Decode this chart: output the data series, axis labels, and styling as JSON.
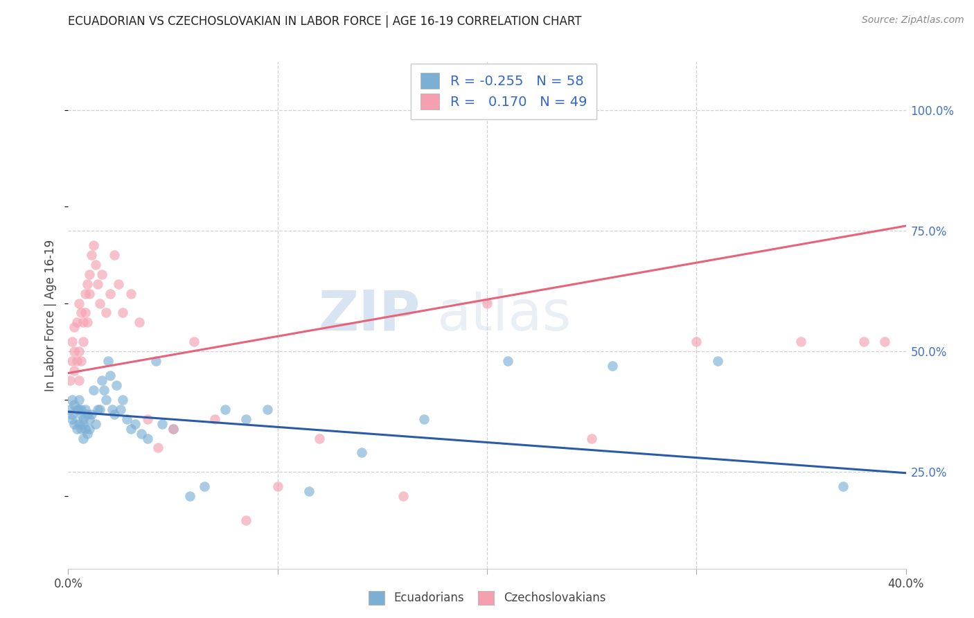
{
  "title": "ECUADORIAN VS CZECHOSLOVAKIAN IN LABOR FORCE | AGE 16-19 CORRELATION CHART",
  "source": "Source: ZipAtlas.com",
  "ylabel": "In Labor Force | Age 16-19",
  "ytick_labels": [
    "25.0%",
    "50.0%",
    "75.0%",
    "100.0%"
  ],
  "ytick_positions": [
    0.25,
    0.5,
    0.75,
    1.0
  ],
  "xlim": [
    0.0,
    0.4
  ],
  "ylim": [
    0.05,
    1.1
  ],
  "legend_r_blue": "-0.255",
  "legend_n_blue": "58",
  "legend_r_pink": "0.170",
  "legend_n_pink": "49",
  "blue_color": "#7BAFD4",
  "pink_color": "#F4A0B0",
  "blue_line_color": "#2B5BA8",
  "pink_line_color": "#E8637A",
  "watermark_zip": "ZIP",
  "watermark_atlas": "atlas",
  "blue_scatter_x": [
    0.001,
    0.002,
    0.002,
    0.002,
    0.003,
    0.003,
    0.004,
    0.004,
    0.005,
    0.005,
    0.005,
    0.006,
    0.006,
    0.006,
    0.007,
    0.007,
    0.007,
    0.008,
    0.008,
    0.009,
    0.009,
    0.01,
    0.01,
    0.011,
    0.012,
    0.013,
    0.014,
    0.015,
    0.016,
    0.017,
    0.018,
    0.019,
    0.02,
    0.021,
    0.022,
    0.023,
    0.025,
    0.026,
    0.028,
    0.03,
    0.032,
    0.035,
    0.038,
    0.042,
    0.045,
    0.05,
    0.058,
    0.065,
    0.075,
    0.085,
    0.095,
    0.115,
    0.14,
    0.17,
    0.21,
    0.26,
    0.31,
    0.37
  ],
  "blue_scatter_y": [
    0.38,
    0.4,
    0.37,
    0.36,
    0.39,
    0.35,
    0.38,
    0.34,
    0.38,
    0.35,
    0.4,
    0.37,
    0.34,
    0.38,
    0.36,
    0.32,
    0.35,
    0.34,
    0.38,
    0.33,
    0.37,
    0.36,
    0.34,
    0.37,
    0.42,
    0.35,
    0.38,
    0.38,
    0.44,
    0.42,
    0.4,
    0.48,
    0.45,
    0.38,
    0.37,
    0.43,
    0.38,
    0.4,
    0.36,
    0.34,
    0.35,
    0.33,
    0.32,
    0.48,
    0.35,
    0.34,
    0.2,
    0.22,
    0.38,
    0.36,
    0.38,
    0.21,
    0.29,
    0.36,
    0.48,
    0.47,
    0.48,
    0.22
  ],
  "pink_scatter_x": [
    0.001,
    0.002,
    0.002,
    0.003,
    0.003,
    0.003,
    0.004,
    0.004,
    0.005,
    0.005,
    0.005,
    0.006,
    0.006,
    0.007,
    0.007,
    0.008,
    0.008,
    0.009,
    0.009,
    0.01,
    0.01,
    0.011,
    0.012,
    0.013,
    0.014,
    0.015,
    0.016,
    0.018,
    0.02,
    0.022,
    0.024,
    0.026,
    0.03,
    0.034,
    0.038,
    0.043,
    0.05,
    0.06,
    0.07,
    0.085,
    0.1,
    0.12,
    0.16,
    0.2,
    0.25,
    0.3,
    0.35,
    0.38,
    0.39
  ],
  "pink_scatter_y": [
    0.44,
    0.48,
    0.52,
    0.5,
    0.46,
    0.55,
    0.48,
    0.56,
    0.5,
    0.44,
    0.6,
    0.48,
    0.58,
    0.56,
    0.52,
    0.62,
    0.58,
    0.64,
    0.56,
    0.62,
    0.66,
    0.7,
    0.72,
    0.68,
    0.64,
    0.6,
    0.66,
    0.58,
    0.62,
    0.7,
    0.64,
    0.58,
    0.62,
    0.56,
    0.36,
    0.3,
    0.34,
    0.52,
    0.36,
    0.15,
    0.22,
    0.32,
    0.2,
    0.6,
    0.32,
    0.52,
    0.52,
    0.52,
    0.52
  ],
  "blue_trendline_x": [
    0.0,
    0.4
  ],
  "blue_trendline_y": [
    0.375,
    0.248
  ],
  "pink_trendline_x": [
    0.0,
    0.4
  ],
  "pink_trendline_y": [
    0.455,
    0.76
  ]
}
